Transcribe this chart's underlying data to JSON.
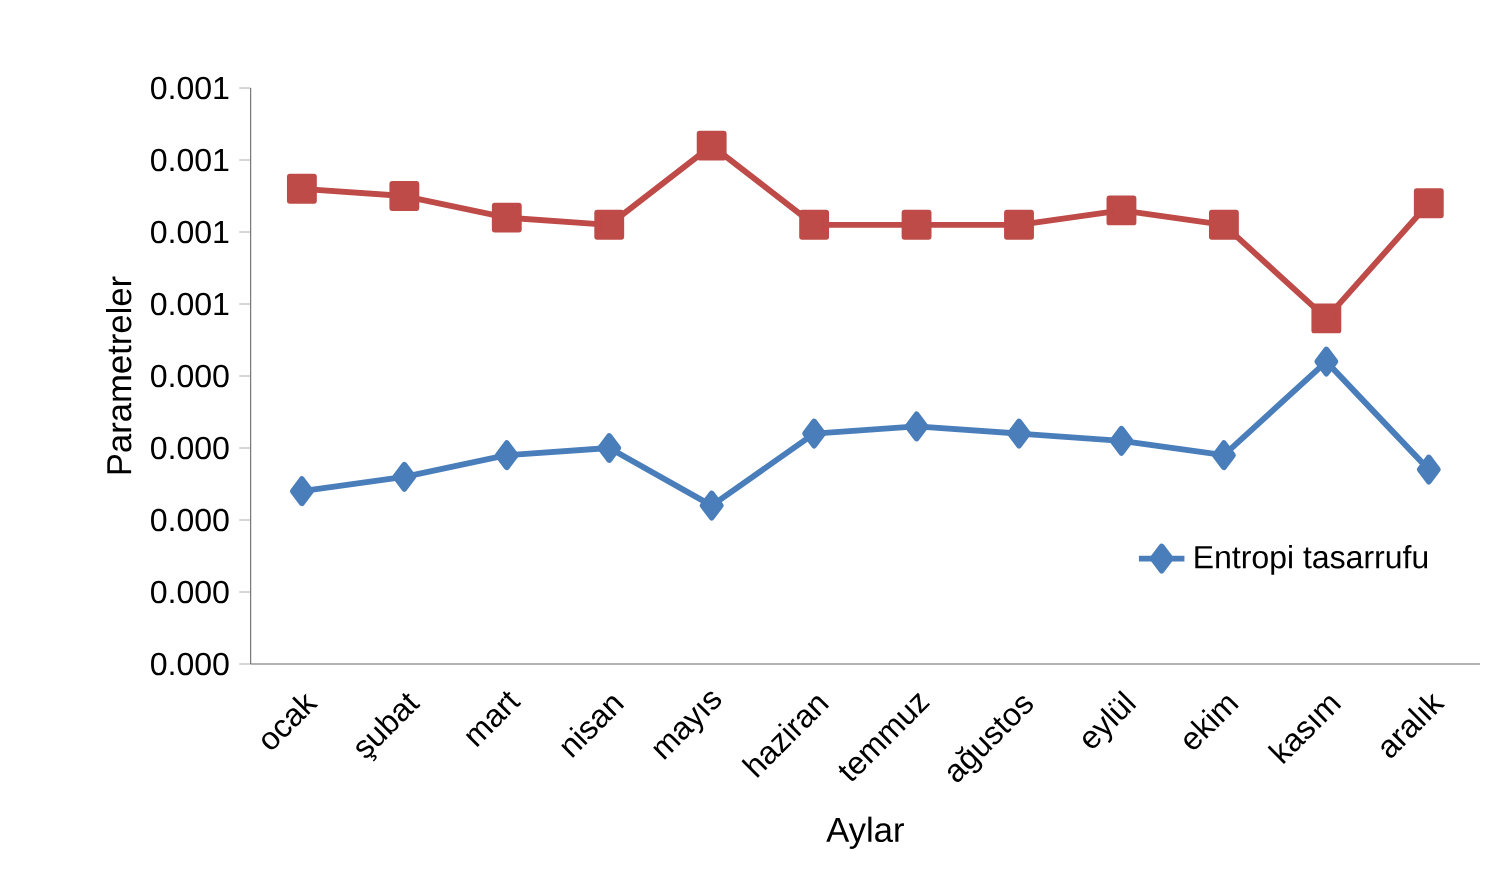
{
  "chart_data": {
    "type": "line",
    "xlabel": "Aylar",
    "ylabel": "Parametreler",
    "categories": [
      "ocak",
      "şubat",
      "mart",
      "nisan",
      "mayıs",
      "haziran",
      "temmuz",
      "ağustos",
      "eylül",
      "ekim",
      "kasım",
      "aralık"
    ],
    "series": [
      {
        "name": "Entropi tasarrufu",
        "color": "#4a7ebb",
        "marker": "diamond",
        "values": [
          0.00024,
          0.00026,
          0.00029,
          0.0003,
          0.00022,
          0.00032,
          0.00033,
          0.00032,
          0.00031,
          0.00029,
          0.00042,
          0.00027
        ]
      },
      {
        "color": "#be4b48",
        "marker": "square",
        "values": [
          0.00066,
          0.00065,
          0.00062,
          0.00061,
          0.00072,
          0.00061,
          0.00061,
          0.00061,
          0.00063,
          0.00061,
          0.00048,
          0.00064
        ]
      }
    ],
    "ylim": [
      0,
      0.0008
    ],
    "yticks": [
      {
        "value": 0,
        "label": "0.000"
      },
      {
        "value": 0.0001,
        "label": "0.000"
      },
      {
        "value": 0.0002,
        "label": "0.000"
      },
      {
        "value": 0.0003,
        "label": "0.000"
      },
      {
        "value": 0.0004,
        "label": "0.000"
      },
      {
        "value": 0.0005,
        "label": "0.001"
      },
      {
        "value": 0.0006,
        "label": "0.001"
      },
      {
        "value": 0.0007,
        "label": "0.001"
      },
      {
        "value": 0.0008,
        "label": "0.001"
      }
    ],
    "grid": false,
    "legend": "bottom right",
    "line_style": "solid"
  }
}
